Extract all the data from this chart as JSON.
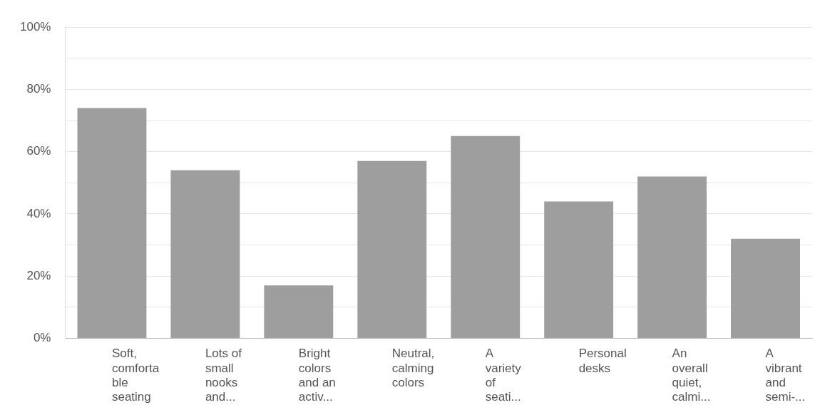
{
  "chart_data": {
    "type": "bar",
    "categories": [
      "Soft,\ncomforta\nble\nseating",
      "Lots of\nsmall\nnooks\nand...",
      "Bright\ncolors\nand an\nactiv...",
      "Neutral,\ncalming\ncolors",
      "A\nvariety\nof\nseati...",
      "Personal\ndesks",
      "An\noverall\nquiet,\ncalmi...",
      "A\nvibrant\nand\nsemi-..."
    ],
    "values": [
      74,
      54,
      17,
      57,
      65,
      44,
      52,
      32
    ],
    "color": "#9e9e9e",
    "ylim": [
      0,
      100
    ],
    "yticks": [
      {
        "value": 0,
        "label": "0%"
      },
      {
        "value": 10,
        "label": null
      },
      {
        "value": 20,
        "label": "20%"
      },
      {
        "value": 30,
        "label": null
      },
      {
        "value": 40,
        "label": "40%"
      },
      {
        "value": 50,
        "label": null
      },
      {
        "value": 60,
        "label": "60%"
      },
      {
        "value": 70,
        "label": null
      },
      {
        "value": 80,
        "label": "80%"
      },
      {
        "value": 90,
        "label": null
      },
      {
        "value": 100,
        "label": "100%"
      }
    ],
    "grid": "y"
  }
}
